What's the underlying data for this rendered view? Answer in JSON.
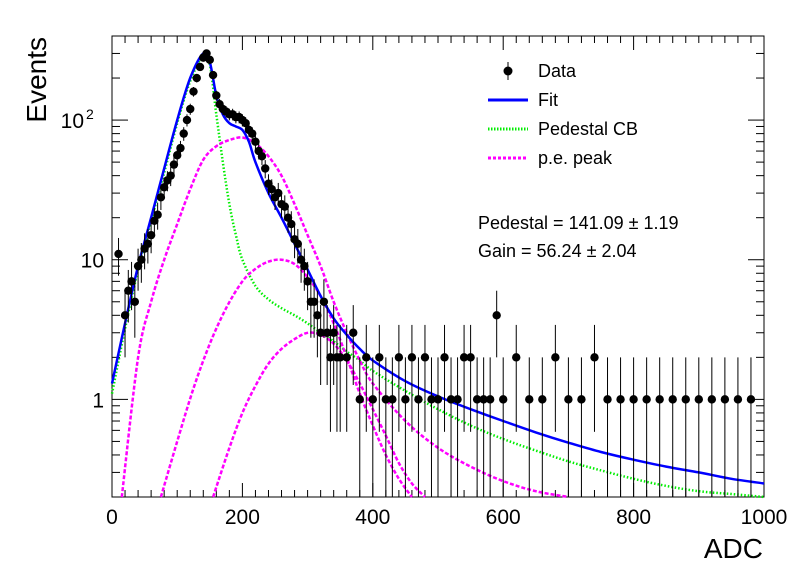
{
  "chart_data": {
    "type": "scatter",
    "xlabel": "ADC",
    "ylabel": "Events",
    "xlim": [
      0,
      1000
    ],
    "ylim": [
      0.2,
      400
    ],
    "log_y": true,
    "grid": false,
    "legend_position": "top-right",
    "x_ticks": [
      "0",
      "200",
      "400",
      "600",
      "800",
      "1000"
    ],
    "y_ticks": [
      {
        "value": 1,
        "base": "1",
        "exp": ""
      },
      {
        "value": 10,
        "base": "10",
        "exp": ""
      },
      {
        "value": 100,
        "base": "10",
        "exp": "2"
      }
    ],
    "legend": [
      {
        "name": "Data",
        "style": "marker",
        "color": "#000000"
      },
      {
        "name": "Fit",
        "style": "solid",
        "color": "#0000ff"
      },
      {
        "name": "Pedestal CB",
        "style": "dotted",
        "color": "#00ee00"
      },
      {
        "name": "p.e. peak",
        "style": "dashed",
        "color": "#ff00ff"
      }
    ],
    "annotations": [
      "Pedestal = 141.09 ± 1.19",
      "Gain = 56.24 ± 2.04"
    ],
    "fit_parameters": {
      "pedestal": 141.09,
      "pedestal_err": 1.19,
      "gain": 56.24,
      "gain_err": 2.04
    },
    "data": {
      "x": [
        10,
        20,
        25,
        30,
        35,
        40,
        45,
        50,
        55,
        60,
        65,
        70,
        75,
        80,
        85,
        90,
        95,
        100,
        105,
        110,
        115,
        120,
        125,
        130,
        135,
        140,
        145,
        150,
        155,
        160,
        165,
        170,
        175,
        180,
        185,
        190,
        195,
        200,
        205,
        210,
        215,
        220,
        225,
        230,
        235,
        240,
        245,
        250,
        255,
        260,
        265,
        270,
        275,
        280,
        285,
        290,
        295,
        300,
        305,
        310,
        315,
        320,
        325,
        330,
        335,
        340,
        345,
        350,
        360,
        370,
        380,
        390,
        400,
        410,
        420,
        430,
        440,
        450,
        460,
        470,
        480,
        490,
        500,
        510,
        520,
        530,
        540,
        550,
        560,
        570,
        580,
        590,
        600,
        620,
        640,
        660,
        680,
        700,
        720,
        740,
        760,
        780,
        800,
        820,
        840,
        860,
        880,
        900,
        920,
        940,
        960,
        980
      ],
      "y": [
        11,
        4,
        6,
        7,
        5,
        9,
        10,
        12,
        13,
        15,
        19,
        21,
        28,
        33,
        37,
        40,
        48,
        56,
        63,
        80,
        100,
        120,
        160,
        200,
        240,
        280,
        300,
        270,
        210,
        150,
        130,
        120,
        115,
        110,
        110,
        105,
        105,
        100,
        95,
        85,
        80,
        70,
        60,
        55,
        45,
        35,
        32,
        28,
        30,
        25,
        24,
        20,
        18,
        14,
        13,
        10,
        9,
        7,
        5,
        5,
        4,
        3,
        5,
        3,
        2,
        3,
        2,
        2,
        2,
        3,
        1,
        2,
        1,
        2,
        1,
        1,
        2,
        1,
        2,
        1,
        2,
        1,
        1,
        2,
        1,
        1,
        2,
        2,
        1,
        1,
        1,
        4,
        1,
        2,
        1,
        1,
        2,
        1,
        1,
        2,
        1,
        1,
        1,
        1,
        1,
        1,
        1,
        1,
        1,
        1,
        1,
        1
      ]
    },
    "series": [
      {
        "name": "Fit",
        "color": "#0000ff",
        "x": [
          0,
          20,
          40,
          60,
          80,
          100,
          120,
          140,
          150,
          160,
          170,
          180,
          190,
          200,
          210,
          220,
          240,
          260,
          280,
          300,
          320,
          340,
          360,
          380,
          400,
          450,
          500,
          550,
          600,
          650,
          700,
          750,
          800,
          850,
          900,
          950,
          1000
        ],
        "y": [
          1.3,
          3.5,
          9,
          20,
          45,
          100,
          200,
          300,
          260,
          150,
          110,
          95,
          90,
          85,
          70,
          50,
          30,
          20,
          13,
          8.5,
          5.5,
          3.8,
          2.9,
          2.3,
          1.9,
          1.35,
          1.05,
          0.85,
          0.7,
          0.58,
          0.49,
          0.42,
          0.37,
          0.33,
          0.3,
          0.27,
          0.25
        ]
      },
      {
        "name": "Pedestal CB",
        "color": "#00ee00",
        "x": [
          0,
          20,
          40,
          60,
          80,
          100,
          120,
          140,
          150,
          160,
          170,
          180,
          190,
          200,
          220,
          240,
          260,
          280,
          300,
          320,
          340,
          360,
          380,
          400,
          450,
          500,
          550,
          600,
          650,
          700,
          750,
          800,
          850,
          900,
          950,
          1000
        ],
        "y": [
          1.1,
          3.2,
          8.5,
          19,
          42,
          95,
          190,
          290,
          250,
          110,
          50,
          25,
          15,
          10,
          6.5,
          5.2,
          4.5,
          4.0,
          3.5,
          3.0,
          2.6,
          2.2,
          1.9,
          1.6,
          1.15,
          0.85,
          0.65,
          0.52,
          0.43,
          0.36,
          0.31,
          0.27,
          0.24,
          0.22,
          0.21,
          0.2
        ]
      },
      {
        "name": "p.e. peak 1",
        "color": "#ff00ff",
        "x": [
          15,
          40,
          60,
          80,
          100,
          120,
          140,
          160,
          180,
          200,
          220,
          240,
          260,
          280,
          300,
          320,
          340,
          360,
          380,
          400,
          450,
          500,
          550,
          600,
          650,
          700
        ],
        "y": [
          0.2,
          2,
          5,
          10,
          18,
          32,
          52,
          65,
          72,
          75,
          68,
          55,
          40,
          25,
          15,
          9,
          5,
          3,
          1.9,
          1.3,
          0.7,
          0.45,
          0.33,
          0.26,
          0.22,
          0.2
        ]
      },
      {
        "name": "p.e. peak 2",
        "color": "#ff00ff",
        "x": [
          75,
          100,
          125,
          150,
          175,
          200,
          220,
          240,
          260,
          280,
          300,
          320,
          340,
          360,
          380,
          400,
          420,
          440,
          460
        ],
        "y": [
          0.2,
          0.5,
          1.2,
          2.5,
          4.5,
          7,
          8.6,
          9.7,
          10,
          9.3,
          7.5,
          5.5,
          3.5,
          2,
          1.1,
          0.65,
          0.4,
          0.27,
          0.2
        ]
      },
      {
        "name": "p.e. peak 3",
        "color": "#ff00ff",
        "x": [
          155,
          180,
          200,
          220,
          240,
          260,
          280,
          300,
          320,
          340,
          360,
          380,
          400,
          420,
          440,
          460,
          480
        ],
        "y": [
          0.2,
          0.45,
          0.8,
          1.25,
          1.8,
          2.3,
          2.7,
          3.0,
          2.9,
          2.5,
          1.9,
          1.3,
          0.85,
          0.55,
          0.35,
          0.25,
          0.2
        ]
      }
    ]
  }
}
